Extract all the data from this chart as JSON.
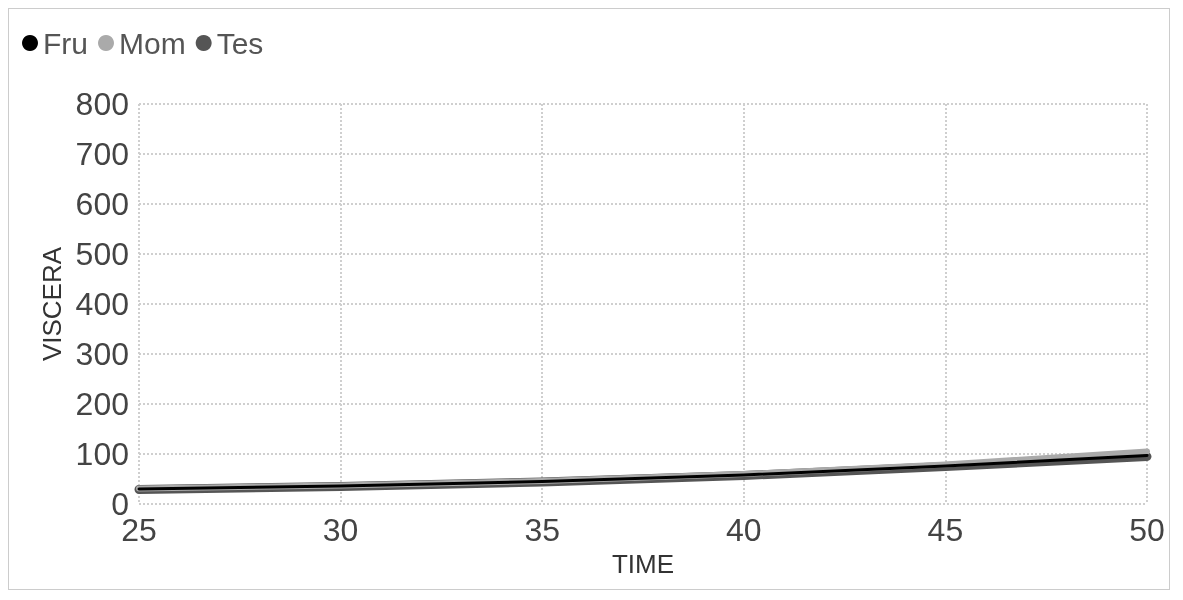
{
  "chart_data": {
    "type": "line",
    "xlabel": "TIME",
    "ylabel": "VISCERA",
    "xlim": [
      25,
      50
    ],
    "xticks": [
      25,
      30,
      35,
      40,
      45,
      50
    ],
    "ylim": [
      0,
      800
    ],
    "yticks": [
      0,
      100,
      200,
      300,
      400,
      500,
      600,
      700,
      800
    ],
    "grid": true,
    "legend": "top left",
    "marker": "none",
    "line_style": "solid",
    "x": [
      25,
      30,
      35,
      40,
      45,
      50
    ],
    "series": [
      {
        "name": "Fru",
        "color": "#000000",
        "values": [
          30,
          36,
          45,
          58,
          76,
          97
        ]
      },
      {
        "name": "Mom",
        "color": "#aaaaaa",
        "values": [
          31,
          37,
          46,
          60,
          79,
          105
        ]
      },
      {
        "name": "Tes",
        "color": "#555555",
        "values": [
          29,
          35,
          44,
          57,
          75,
          95
        ]
      }
    ]
  }
}
